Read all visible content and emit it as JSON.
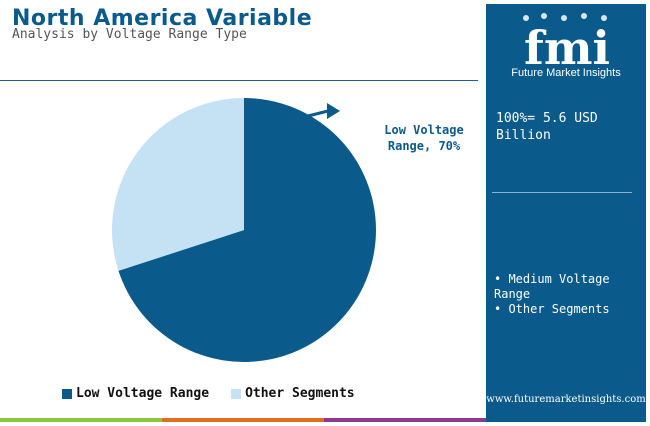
{
  "header": {
    "title": "North America Variable",
    "subtitle": "Analysis by Voltage Range Type"
  },
  "colors": {
    "low_voltage": "#0b5a8c",
    "other_segments": "#c5e2f4",
    "panel": "#0b5a8c",
    "accent_green": "#8cc63f",
    "accent_orange": "#e36c1e",
    "accent_purple": "#8b3a8f"
  },
  "chart_data": {
    "type": "pie",
    "categories": [
      "Low Voltage Range",
      "Other Segments"
    ],
    "values": [
      70,
      30
    ],
    "unit": "%",
    "annotation": "Low Voltage Range, 70%",
    "legend_position": "bottom",
    "legend": [
      "Low Voltage Range",
      "Other Segments"
    ]
  },
  "callout": {
    "line1": "Low Voltage",
    "line2": "Range, 70%"
  },
  "sidebar": {
    "logo_text": "fmi",
    "logo_caption": "Future Market Insights",
    "total_line1": "100%= 5.6 USD",
    "total_line2": "Billion",
    "bullets": [
      "• Medium Voltage Range",
      "• Other Segments"
    ],
    "website": "www.futuremarketinsights.com"
  }
}
